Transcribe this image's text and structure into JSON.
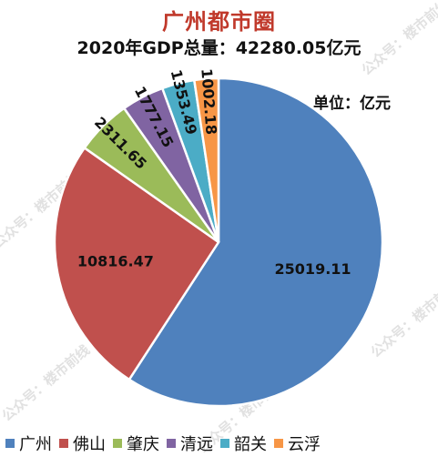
{
  "watermark_text": "公众号：楼市前线",
  "chart_data": {
    "type": "pie",
    "title": "广州都市圈",
    "subtitle": "2020年GDP总量：42280.05亿元",
    "unit_label": "单位：亿元",
    "legend_position": "bottom",
    "categories": [
      "广州",
      "佛山",
      "肇庆",
      "清远",
      "韶关",
      "云浮"
    ],
    "values": [
      25019.11,
      10816.47,
      2311.65,
      1777.15,
      1353.49,
      1002.18
    ],
    "value_labels": [
      "25019.11",
      "10816.47",
      "2311.65",
      "1777.15",
      "1353.49",
      "1002.18"
    ],
    "colors": [
      "#4f81bd",
      "#c0504d",
      "#9bbb59",
      "#8064a2",
      "#4bacc6",
      "#f79646"
    ]
  }
}
